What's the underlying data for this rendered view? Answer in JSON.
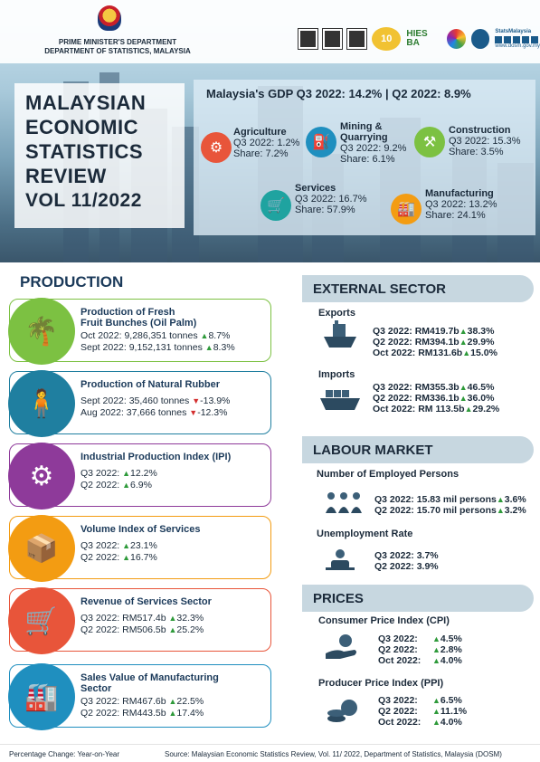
{
  "header": {
    "dept_line1": "PRIME MINISTER'S DEPARTMENT",
    "dept_line2": "DEPARTMENT OF STATISTICS, MALAYSIA",
    "logo_10": "10",
    "logo_hies": "HIES BA",
    "stats_site": "StatsMalaysia",
    "stats_url": "www.dosm.gov.my"
  },
  "title": {
    "line1": "MALAYSIAN",
    "line2": "ECONOMIC",
    "line3": "STATISTICS",
    "line4": "REVIEW",
    "line5": "VOL 11/2022"
  },
  "gdp": {
    "headline": "Malaysia's GDP  Q3 2022: 14.2% | Q2 2022: 8.9%",
    "sectors": [
      {
        "name": "Agriculture",
        "line1": "Q3 2022: 1.2%",
        "line2": "Share: 7.2%",
        "color": "#e8553a"
      },
      {
        "name": "Mining &",
        "name2": "Quarrying",
        "line1": "Q3 2022: 9.2%",
        "line2": "Share: 6.1%",
        "color": "#1f8fbf"
      },
      {
        "name": "Construction",
        "line1": "Q3 2022: 15.3%",
        "line2": "Share: 3.5%",
        "color": "#7cc142"
      },
      {
        "name": "Services",
        "line1": "Q3 2022: 16.7%",
        "line2": "Share: 57.9%",
        "color": "#1fa3a0"
      },
      {
        "name": "Manufacturing",
        "line1": "Q3 2022: 13.2%",
        "line2": "Share: 24.1%",
        "color": "#f39c12"
      }
    ]
  },
  "production": {
    "heading": "PRODUCTION",
    "cards": [
      {
        "title": "Production of Fresh",
        "title2": "Fruit Bunches (Oil Palm)",
        "l1": "Oct 2022: 9,286,351 tonnes",
        "l1c": "8.7%",
        "l1d": "up",
        "l2": "Sept 2022: 9,152,131 tonnes",
        "l2c": "8.3%",
        "l2d": "up",
        "color": "#7cc142",
        "icon": "palm-tree-icon"
      },
      {
        "title": "Production of Natural Rubber",
        "title2": "",
        "l1": "Sept 2022: 35,460 tonnes",
        "l1c": "-13.9%",
        "l1d": "down",
        "l2": "Aug 2022: 37,666 tonnes",
        "l2c": "-12.3%",
        "l2d": "down",
        "color": "#1f7fa0",
        "icon": "rubber-tapper-icon"
      },
      {
        "title": "Industrial Production Index (IPI)",
        "title2": "",
        "l1": "Q3 2022:",
        "l1c": "12.2%",
        "l1d": "up",
        "l2": "Q2 2022:",
        "l2c": "6.9%",
        "l2d": "up",
        "color": "#8e3a9a",
        "icon": "factory-gear-icon"
      },
      {
        "title": "Volume Index of Services",
        "title2": "",
        "l1": "Q3 2022:",
        "l1c": "23.1%",
        "l1d": "up",
        "l2": "Q2 2022:",
        "l2c": "16.7%",
        "l2d": "up",
        "color": "#f39c12",
        "icon": "hand-truck-icon"
      },
      {
        "title": "Revenue of Services Sector",
        "title2": "",
        "l1": "Q3 2022: RM517.4b",
        "l1c": "32.3%",
        "l1d": "up",
        "l2": "Q2 2022: RM506.5b",
        "l2c": "25.2%",
        "l2d": "up",
        "color": "#e8553a",
        "icon": "shopping-cart-icon"
      },
      {
        "title": "Sales Value of Manufacturing",
        "title2": "Sector",
        "l1": "Q3 2022: RM467.6b",
        "l1c": "22.5%",
        "l1d": "up",
        "l2": "Q2 2022: RM443.5b",
        "l2c": "17.4%",
        "l2d": "up",
        "color": "#1f8fbf",
        "icon": "factory-icon"
      }
    ]
  },
  "external": {
    "heading": "EXTERNAL SECTOR",
    "exports_label": "Exports",
    "exports": [
      {
        "t": "Q3 2022: RM419.7b",
        "c": "38.3%"
      },
      {
        "t": "Q2 2022: RM394.1b",
        "c": "29.9%"
      },
      {
        "t": "Oct 2022: RM131.6b",
        "c": "15.0%"
      }
    ],
    "imports_label": "Imports",
    "imports": [
      {
        "t": "Q3 2022: RM355.3b",
        "c": "46.5%"
      },
      {
        "t": "Q2 2022: RM336.1b",
        "c": "36.0%"
      },
      {
        "t": "Oct 2022: RM 113.5b",
        "c": "29.2%"
      }
    ]
  },
  "labour": {
    "heading": "LABOUR MARKET",
    "employed_label": "Number of Employed Persons",
    "employed": [
      {
        "t": "Q3 2022: 15.83 mil persons",
        "c": "3.6%"
      },
      {
        "t": "Q2 2022: 15.70 mil persons",
        "c": "3.2%"
      }
    ],
    "unemp_label": "Unemployment  Rate",
    "unemp": [
      {
        "t": "Q3 2022: 3.7%"
      },
      {
        "t": "Q2 2022: 3.9%"
      }
    ]
  },
  "prices": {
    "heading": "PRICES",
    "cpi_label": "Consumer Price Index (CPI)",
    "cpi": [
      {
        "p": "Q3 2022:",
        "c": "4.5%"
      },
      {
        "p": "Q2 2022:",
        "c": "2.8%"
      },
      {
        "p": "Oct 2022:",
        "c": "4.0%"
      }
    ],
    "ppi_label": "Producer Price Index (PPI)",
    "ppi": [
      {
        "p": "Q3  2022:",
        "c": "6.5%"
      },
      {
        "p": "Q2 2022:",
        "c": "11.1%"
      },
      {
        "p": "Oct 2022:",
        "c": "4.0%"
      }
    ]
  },
  "footer": {
    "left": "Percentage Change: Year-on-Year",
    "right": "Source: Malaysian Economic Statistics Review, Vol. 11/ 2022, Department of Statistics, Malaysia (DOSM)"
  },
  "arrows": {
    "up": "▲",
    "down": "▼"
  }
}
